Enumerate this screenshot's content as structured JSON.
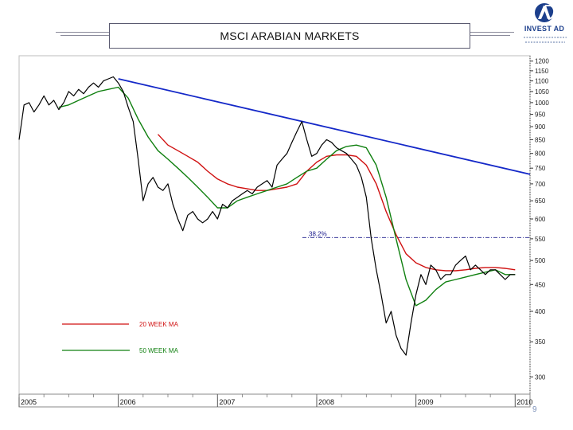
{
  "header": {
    "title": "MSCI ARABIAN MARKETS",
    "page_number": "9"
  },
  "logo": {
    "name": "INVEST AD",
    "icon": "investad-logo-icon"
  },
  "colors": {
    "price": "#000000",
    "ma20": "#d01010",
    "ma50": "#108010",
    "trend": "#1428c8",
    "fib": "#1a1a8c"
  },
  "chart_data": {
    "type": "line",
    "yscale": "log",
    "ylim": [
      280,
      1220
    ],
    "xlim": [
      2005.0,
      2010.15
    ],
    "y_ticks": [
      1200,
      1150,
      1100,
      1050,
      1000,
      950,
      900,
      850,
      800,
      750,
      700,
      650,
      600,
      550,
      500,
      450,
      400,
      350,
      300
    ],
    "x_ticks": [
      "2005",
      "2006",
      "2007",
      "2008",
      "2009",
      "2010"
    ],
    "x_tick_values": [
      2005.0,
      2006.0,
      2007.0,
      2008.0,
      2009.0,
      2010.0
    ],
    "legend": {
      "placement": "left"
    },
    "annotations": [
      {
        "text": "38.2%",
        "y": 553
      }
    ],
    "series": [
      {
        "key": "price",
        "x": [
          2005.0,
          2005.05,
          2005.1,
          2005.15,
          2005.2,
          2005.25,
          2005.3,
          2005.35,
          2005.4,
          2005.45,
          2005.5,
          2005.55,
          2005.6,
          2005.65,
          2005.7,
          2005.75,
          2005.8,
          2005.85,
          2005.9,
          2005.95,
          2006.0,
          2006.05,
          2006.1,
          2006.15,
          2006.2,
          2006.25,
          2006.3,
          2006.35,
          2006.4,
          2006.45,
          2006.5,
          2006.55,
          2006.6,
          2006.65,
          2006.7,
          2006.75,
          2006.8,
          2006.85,
          2006.9,
          2006.95,
          2007.0,
          2007.05,
          2007.1,
          2007.15,
          2007.2,
          2007.25,
          2007.3,
          2007.35,
          2007.4,
          2007.45,
          2007.5,
          2007.55,
          2007.6,
          2007.65,
          2007.7,
          2007.75,
          2007.8,
          2007.85,
          2007.9,
          2007.95,
          2008.0,
          2008.05,
          2008.1,
          2008.15,
          2008.2,
          2008.25,
          2008.3,
          2008.35,
          2008.4,
          2008.45,
          2008.5,
          2008.55,
          2008.6,
          2008.65,
          2008.7,
          2008.75,
          2008.8,
          2008.85,
          2008.9,
          2008.95,
          2009.0,
          2009.05,
          2009.1,
          2009.15,
          2009.2,
          2009.25,
          2009.3,
          2009.35,
          2009.4,
          2009.45,
          2009.5,
          2009.55,
          2009.6,
          2009.65,
          2009.7,
          2009.75,
          2009.8,
          2009.85,
          2009.9,
          2009.95,
          2010.0
        ],
        "y": [
          850,
          990,
          1000,
          960,
          990,
          1030,
          990,
          1010,
          970,
          1000,
          1050,
          1030,
          1060,
          1040,
          1070,
          1090,
          1070,
          1100,
          1110,
          1120,
          1090,
          1050,
          980,
          920,
          780,
          650,
          700,
          720,
          690,
          680,
          700,
          640,
          600,
          570,
          610,
          620,
          600,
          590,
          600,
          620,
          600,
          640,
          630,
          650,
          660,
          670,
          680,
          670,
          690,
          700,
          710,
          690,
          760,
          780,
          800,
          840,
          880,
          920,
          850,
          790,
          800,
          830,
          850,
          840,
          820,
          810,
          800,
          780,
          760,
          720,
          660,
          550,
          480,
          430,
          380,
          400,
          360,
          340,
          330,
          380,
          430,
          470,
          450,
          490,
          480,
          460,
          470,
          470,
          490,
          500,
          510,
          480,
          490,
          480,
          470,
          480,
          480,
          470,
          460,
          470,
          470
        ]
      },
      {
        "key": "ma20",
        "label": "20 WEEK MA",
        "x": [
          2006.4,
          2006.5,
          2006.6,
          2006.7,
          2006.8,
          2006.9,
          2007.0,
          2007.1,
          2007.2,
          2007.3,
          2007.4,
          2007.5,
          2007.6,
          2007.7,
          2007.8,
          2007.9,
          2008.0,
          2008.1,
          2008.2,
          2008.3,
          2008.4,
          2008.5,
          2008.6,
          2008.7,
          2008.8,
          2008.9,
          2009.0,
          2009.1,
          2009.2,
          2009.3,
          2009.4,
          2009.5,
          2009.6,
          2009.7,
          2009.8,
          2009.9,
          2010.0
        ],
        "y": [
          870,
          830,
          810,
          790,
          770,
          740,
          715,
          700,
          690,
          685,
          680,
          680,
          685,
          690,
          700,
          740,
          770,
          790,
          795,
          795,
          790,
          760,
          700,
          620,
          560,
          515,
          495,
          485,
          480,
          478,
          478,
          480,
          483,
          485,
          485,
          483,
          480
        ]
      },
      {
        "key": "ma50",
        "label": "50 WEEK MA",
        "x": [
          2005.4,
          2005.5,
          2005.6,
          2005.7,
          2005.8,
          2005.9,
          2006.0,
          2006.1,
          2006.2,
          2006.3,
          2006.4,
          2006.5,
          2006.6,
          2006.7,
          2006.8,
          2006.9,
          2007.0,
          2007.1,
          2007.2,
          2007.3,
          2007.4,
          2007.5,
          2007.6,
          2007.7,
          2007.8,
          2007.9,
          2008.0,
          2008.1,
          2008.2,
          2008.3,
          2008.4,
          2008.5,
          2008.6,
          2008.7,
          2008.8,
          2008.9,
          2009.0,
          2009.1,
          2009.2,
          2009.3,
          2009.4,
          2009.5,
          2009.6,
          2009.7,
          2009.8,
          2009.9,
          2010.0
        ],
        "y": [
          980,
          990,
          1010,
          1030,
          1050,
          1060,
          1070,
          1020,
          930,
          860,
          810,
          780,
          750,
          720,
          690,
          660,
          630,
          630,
          650,
          660,
          670,
          680,
          690,
          700,
          720,
          740,
          750,
          780,
          810,
          825,
          830,
          820,
          760,
          660,
          550,
          460,
          410,
          420,
          440,
          455,
          460,
          465,
          470,
          475,
          480,
          470,
          470
        ]
      },
      {
        "key": "trend",
        "x": [
          2006.0,
          2010.15
        ],
        "y": [
          1110,
          730
        ]
      }
    ]
  }
}
